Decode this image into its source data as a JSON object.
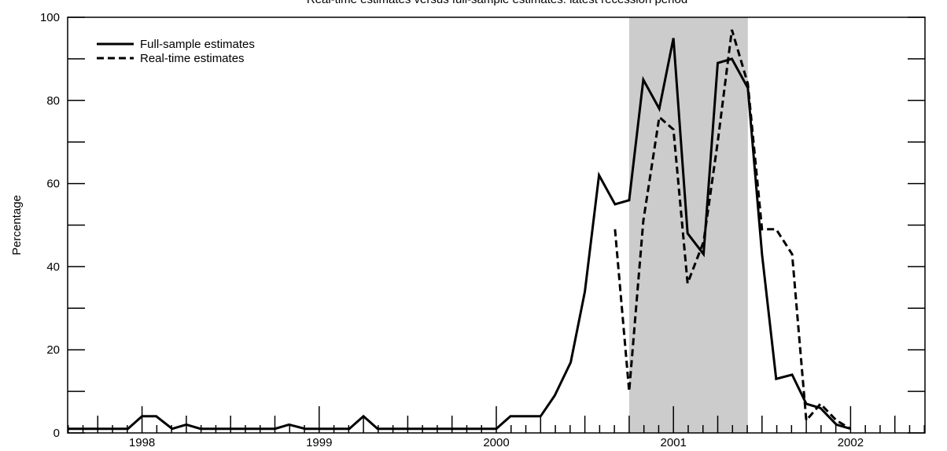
{
  "chart_data": {
    "type": "line",
    "title": "Real-time estimates versus full-sample estimates: latest recession period",
    "xlabel": "",
    "ylabel": "Percentage",
    "xlim": [
      1997.58,
      2002.42
    ],
    "ylim": [
      0,
      100
    ],
    "y_ticks": [
      0,
      20,
      40,
      60,
      80,
      100
    ],
    "x_ticks": [
      {
        "label": "1998",
        "x": 1998.0
      },
      {
        "label": "1999",
        "x": 1999.0
      },
      {
        "label": "2000",
        "x": 2000.0
      },
      {
        "label": "2001",
        "x": 2001.0
      },
      {
        "label": "2002",
        "x": 2002.0
      }
    ],
    "shaded_region": {
      "x_start": 2000.75,
      "x_end": 2001.42,
      "color": "#cccccc"
    },
    "legend": {
      "position": "top-left"
    },
    "series": [
      {
        "name": "Full-sample estimates",
        "style": "solid",
        "points": [
          [
            1997.58,
            1
          ],
          [
            1997.67,
            1
          ],
          [
            1997.75,
            1
          ],
          [
            1997.83,
            1
          ],
          [
            1997.92,
            1
          ],
          [
            1998.0,
            4
          ],
          [
            1998.08,
            4
          ],
          [
            1998.17,
            1
          ],
          [
            1998.25,
            2
          ],
          [
            1998.33,
            1
          ],
          [
            1998.42,
            1
          ],
          [
            1998.5,
            1
          ],
          [
            1998.58,
            1
          ],
          [
            1998.67,
            1
          ],
          [
            1998.75,
            1
          ],
          [
            1998.83,
            2
          ],
          [
            1998.92,
            1
          ],
          [
            1999.0,
            1
          ],
          [
            1999.08,
            1
          ],
          [
            1999.17,
            1
          ],
          [
            1999.25,
            4
          ],
          [
            1999.33,
            1
          ],
          [
            1999.42,
            1
          ],
          [
            1999.5,
            1
          ],
          [
            1999.58,
            1
          ],
          [
            1999.67,
            1
          ],
          [
            1999.75,
            1
          ],
          [
            1999.83,
            1
          ],
          [
            1999.92,
            1
          ],
          [
            2000.0,
            1
          ],
          [
            2000.08,
            4
          ],
          [
            2000.17,
            4
          ],
          [
            2000.25,
            4
          ],
          [
            2000.33,
            9
          ],
          [
            2000.42,
            17
          ],
          [
            2000.5,
            34
          ],
          [
            2000.58,
            62
          ],
          [
            2000.67,
            55
          ],
          [
            2000.75,
            56
          ],
          [
            2000.83,
            85
          ],
          [
            2000.92,
            78
          ],
          [
            2001.0,
            95
          ],
          [
            2001.08,
            48
          ],
          [
            2001.17,
            43
          ],
          [
            2001.25,
            89
          ],
          [
            2001.33,
            90
          ],
          [
            2001.42,
            83
          ],
          [
            2001.5,
            43
          ],
          [
            2001.58,
            13
          ],
          [
            2001.67,
            14
          ],
          [
            2001.75,
            7
          ],
          [
            2001.83,
            6
          ],
          [
            2001.92,
            2
          ],
          [
            2002.0,
            1
          ]
        ]
      },
      {
        "name": "Real-time estimates",
        "style": "dashed",
        "points": [
          [
            2000.67,
            49
          ],
          [
            2000.75,
            10
          ],
          [
            2000.83,
            51
          ],
          [
            2000.92,
            76
          ],
          [
            2001.0,
            73
          ],
          [
            2001.08,
            36
          ],
          [
            2001.17,
            46
          ],
          [
            2001.25,
            70
          ],
          [
            2001.33,
            97
          ],
          [
            2001.42,
            84
          ],
          [
            2001.5,
            49
          ],
          [
            2001.58,
            49
          ],
          [
            2001.67,
            43
          ],
          [
            2001.75,
            3
          ],
          [
            2001.83,
            7
          ],
          [
            2001.92,
            3
          ],
          [
            2002.0,
            1
          ]
        ]
      }
    ]
  }
}
